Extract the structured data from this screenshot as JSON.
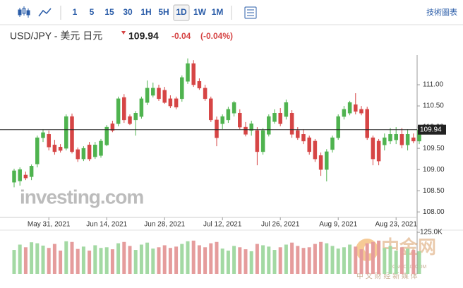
{
  "toolbar": {
    "intervals": [
      "1",
      "5",
      "15",
      "30",
      "1H",
      "5H",
      "1D",
      "1W",
      "1M"
    ],
    "right_label": "技術圖表"
  },
  "header": {
    "symbol": "USD/JPY - 美元 日元",
    "price": "109.94",
    "change": "-0.04",
    "change_percent": "(-0.04%)"
  },
  "watermarks": {
    "investing": "investing.com",
    "cngold_name": "中金网",
    "cngold_site": "CNGOLD.COM",
    "cngold_slogan": "中 文 财 经 新 媒 体"
  },
  "chart_data": {
    "type": "candlestick",
    "open": [
      108.7,
      108.73,
      108.87,
      108.83,
      109.13,
      109.75,
      109.83,
      109.58,
      109.53,
      109.5,
      110.25,
      109.47,
      109.25,
      109.58,
      109.3,
      109.33,
      109.58,
      110.08,
      110.08,
      110.7,
      110.25,
      110.17,
      110.25,
      110.58,
      110.75,
      110.92,
      110.87,
      110.67,
      110.67,
      110.67,
      111.08,
      111.5,
      111.08,
      110.92,
      110.67,
      110.17,
      110.08,
      110.17,
      110.33,
      110.33,
      110.0,
      109.92,
      109.92,
      109.42,
      109.83,
      110.13,
      110.33,
      110.25,
      110.33,
      109.92,
      109.83,
      109.75,
      109.67,
      109.33,
      109.0,
      109.47,
      109.75,
      110.25,
      110.33,
      110.53,
      110.42,
      110.42,
      109.75,
      109.67,
      109.58,
      109.67,
      109.7,
      109.83,
      109.58,
      109.75,
      109.67
    ],
    "high": [
      109.02,
      109.05,
      108.95,
      109.12,
      109.8,
      109.95,
      109.92,
      109.7,
      109.6,
      110.3,
      110.32,
      109.52,
      109.55,
      109.65,
      109.65,
      109.72,
      110.05,
      110.15,
      110.72,
      110.78,
      110.3,
      110.38,
      110.72,
      111.1,
      111.05,
      111.0,
      110.95,
      110.75,
      110.72,
      111.22,
      111.62,
      111.58,
      111.15,
      111.0,
      110.72,
      110.25,
      110.3,
      110.48,
      110.62,
      110.42,
      110.12,
      110.15,
      110.0,
      109.98,
      110.3,
      110.42,
      110.45,
      110.65,
      110.4,
      110.0,
      109.95,
      109.8,
      109.72,
      109.4,
      109.48,
      109.8,
      110.3,
      110.5,
      110.62,
      110.8,
      110.5,
      110.48,
      109.8,
      109.72,
      109.85,
      109.98,
      110.0,
      109.98,
      109.95,
      109.85,
      110.05
    ],
    "low": [
      108.58,
      108.62,
      108.75,
      108.75,
      109.05,
      109.65,
      109.45,
      109.35,
      109.4,
      109.45,
      109.38,
      109.18,
      109.2,
      109.2,
      109.25,
      109.28,
      109.55,
      109.88,
      110.02,
      110.1,
      110.05,
      109.8,
      110.2,
      110.52,
      110.7,
      110.62,
      110.55,
      110.45,
      110.42,
      110.6,
      111.02,
      110.95,
      110.88,
      110.62,
      110.12,
      109.55,
      109.95,
      110.1,
      110.25,
      109.95,
      109.78,
      109.8,
      109.1,
      109.35,
      109.78,
      110.08,
      110.02,
      110.18,
      109.75,
      109.7,
      109.6,
      109.35,
      109.18,
      108.85,
      108.72,
      109.4,
      109.7,
      110.18,
      110.28,
      110.3,
      110.28,
      109.7,
      109.1,
      109.1,
      109.45,
      109.6,
      109.6,
      109.5,
      109.45,
      109.62,
      109.6
    ],
    "close": [
      108.97,
      109.0,
      108.8,
      109.08,
      109.75,
      109.87,
      109.53,
      109.42,
      109.45,
      110.25,
      109.42,
      109.25,
      109.5,
      109.25,
      109.58,
      109.67,
      110.0,
      109.92,
      110.67,
      110.17,
      110.08,
      110.33,
      110.67,
      110.92,
      110.92,
      110.67,
      110.58,
      110.5,
      110.47,
      111.17,
      111.5,
      111.0,
      110.92,
      110.67,
      110.17,
      109.75,
      110.25,
      110.42,
      110.58,
      110.0,
      109.83,
      110.08,
      109.42,
      109.92,
      110.25,
      110.33,
      110.08,
      110.58,
      109.83,
      109.75,
      109.67,
      109.42,
      109.25,
      109.0,
      109.42,
      109.75,
      110.25,
      110.42,
      110.58,
      110.37,
      110.33,
      109.75,
      109.25,
      109.2,
      109.75,
      109.83,
      109.83,
      109.58,
      109.83,
      109.67,
      109.94
    ],
    "volume": [
      72000,
      88000,
      80000,
      95000,
      92000,
      85000,
      78000,
      90000,
      70000,
      98000,
      96000,
      75000,
      82000,
      70000,
      86000,
      78000,
      80000,
      74000,
      92000,
      96000,
      84000,
      72000,
      88000,
      94000,
      76000,
      80000,
      86000,
      78000,
      82000,
      90000,
      98000,
      100000,
      86000,
      80000,
      92000,
      96000,
      76000,
      70000,
      84000,
      80000,
      74000,
      68000,
      90000,
      86000,
      82000,
      72000,
      80000,
      88000,
      94000,
      84000,
      78000,
      80000,
      90000,
      96000,
      92000,
      84000,
      76000,
      80000,
      88000,
      82000,
      74000,
      92000,
      96000,
      100000,
      78000,
      84000,
      70000,
      80000,
      76000,
      72000,
      68000
    ],
    "up_color": "#4fb34f",
    "down_color": "#d64545",
    "up_volume_color": "#a3d9a3",
    "down_volume_color": "#e59c9c",
    "ylim": [
      107.92,
      111.7
    ],
    "yticks": [
      {
        "value": 108,
        "label": "108.00"
      },
      {
        "value": 108.5,
        "label": "108.50"
      },
      {
        "value": 109,
        "label": "109.00"
      },
      {
        "value": 109.5,
        "label": "109.50"
      },
      {
        "value": 110,
        "label": "110.00"
      },
      {
        "value": 110.5,
        "label": "110.50"
      },
      {
        "value": 111,
        "label": "111.00"
      }
    ],
    "y2lim": [
      0,
      140000
    ],
    "y2ticks": [
      {
        "value": 125000,
        "label": "125.0K"
      }
    ],
    "xticks": [
      {
        "value": 6,
        "label": "May 31, 2021"
      },
      {
        "value": 16,
        "label": "Jun 14, 2021"
      },
      {
        "value": 26,
        "label": "Jun 28, 2021"
      },
      {
        "value": 36,
        "label": "Jul 12, 2021"
      },
      {
        "value": 46,
        "label": "Jul 26, 2021"
      },
      {
        "value": 56,
        "label": "Aug 9, 2021"
      },
      {
        "value": 66,
        "label": "Aug 23, 2021"
      }
    ],
    "price_line": 109.94
  }
}
